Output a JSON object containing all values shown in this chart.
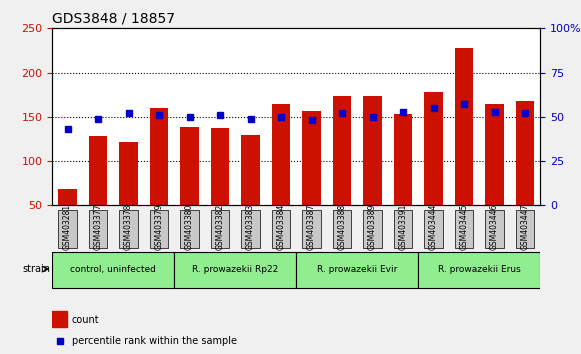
{
  "title": "GDS3848 / 18857",
  "samples": [
    "GSM403281",
    "GSM403377",
    "GSM403378",
    "GSM403379",
    "GSM403380",
    "GSM403382",
    "GSM403383",
    "GSM403384",
    "GSM403387",
    "GSM403388",
    "GSM403389",
    "GSM403391",
    "GSM403444",
    "GSM403445",
    "GSM403446",
    "GSM403447"
  ],
  "count_values": [
    68,
    128,
    122,
    160,
    139,
    137,
    130,
    164,
    157,
    174,
    174,
    153,
    178,
    228,
    164,
    168
  ],
  "percentile_values": [
    43,
    49,
    52,
    51,
    50,
    51,
    49,
    50,
    48,
    52,
    50,
    53,
    55,
    57,
    53,
    52
  ],
  "groups": [
    {
      "label": "control, uninfected",
      "start": 0,
      "end": 4,
      "color": "#90EE90"
    },
    {
      "label": "R. prowazekii Rp22",
      "start": 4,
      "end": 8,
      "color": "#90EE90"
    },
    {
      "label": "R. prowazekii Evir",
      "start": 8,
      "end": 12,
      "color": "#90EE90"
    },
    {
      "label": "R. prowazekii Erus",
      "start": 12,
      "end": 16,
      "color": "#90EE90"
    }
  ],
  "ylim_left": [
    50,
    250
  ],
  "ylim_right": [
    0,
    100
  ],
  "yticks_left": [
    50,
    100,
    150,
    200,
    250
  ],
  "yticks_right": [
    0,
    25,
    50,
    75,
    100
  ],
  "bar_color": "#CC1100",
  "dot_color": "#0000CC",
  "grid_color": "#000000",
  "tick_label_color_left": "#CC1100",
  "tick_label_color_right": "#0000CC",
  "bg_plot": "#FFFFFF",
  "bg_xtick": "#C8C8C8",
  "legend_count_label": "count",
  "legend_pct_label": "percentile rank within the sample"
}
